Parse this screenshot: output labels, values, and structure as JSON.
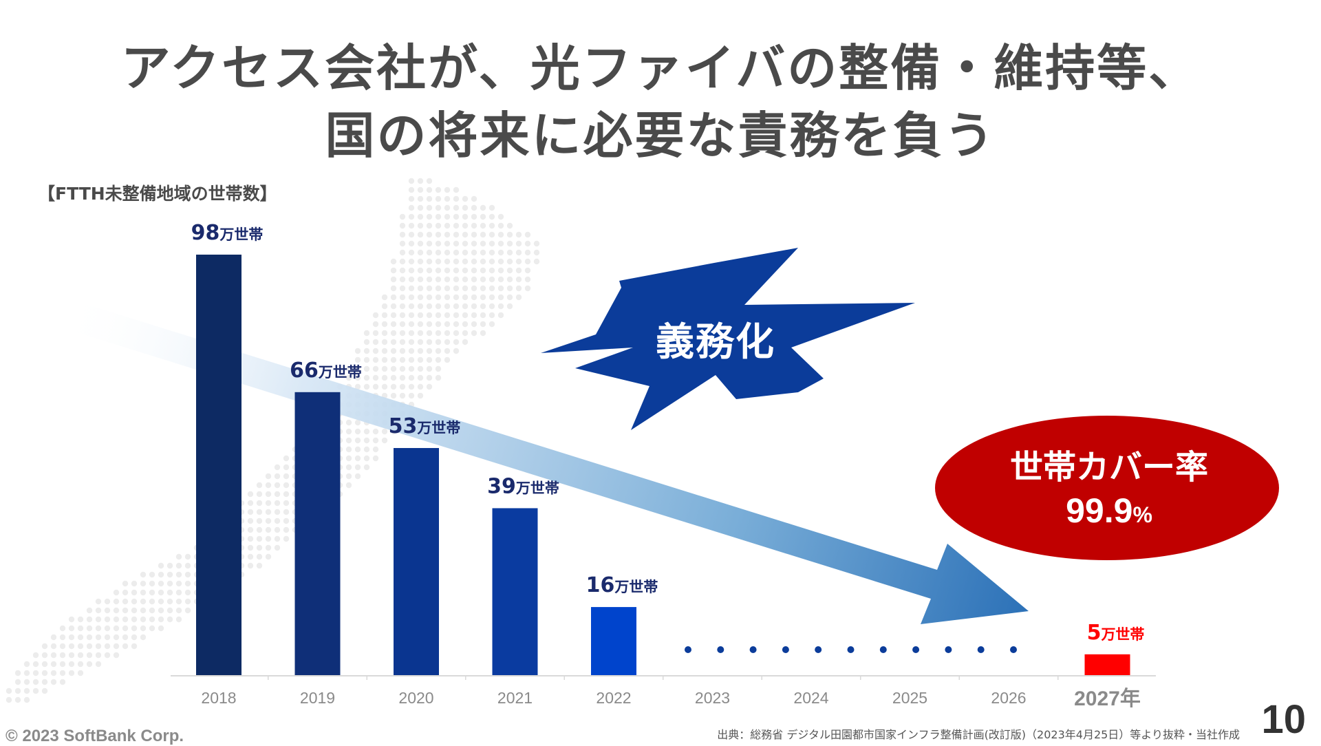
{
  "slide": {
    "title_line1": "アクセス会社が、光ファイバの整備・維持等、",
    "title_line2": "国の将来に必要な責務を負う",
    "caption": "【FTTH未整備地域の世帯数】",
    "badge": "義務化",
    "coverage_label": "世帯カバー率",
    "coverage_value": "99.9",
    "coverage_unit": "%",
    "copyright": "© 2023 SoftBank Corp.",
    "source": "出典：総務省 デジタル田園都市国家インフラ整備計画(改訂版)（2023年4月25日）等より抜粋・当社作成",
    "page_number": "10"
  },
  "colors": {
    "title": "#4a4a4a",
    "bar_dark": "#0d2a63",
    "bar_light": "#0044cc",
    "bar_highlight": "#ff0000",
    "badge": "#0b3c9a",
    "coverage_ellipse": "#c00000",
    "label_navy": "#1a2a6c",
    "label_red": "#ff0000"
  },
  "chart_data": {
    "type": "bar",
    "title": "【FTTH未整備地域の世帯数】",
    "categories": [
      "2018",
      "2019",
      "2020",
      "2021",
      "2022",
      "2023",
      "2024",
      "2025",
      "2026",
      "2027年"
    ],
    "values": [
      98,
      66,
      53,
      39,
      16,
      null,
      null,
      null,
      null,
      5
    ],
    "unit": "万世帯",
    "data_labels": [
      {
        "num": "98",
        "unit": "万世帯"
      },
      {
        "num": "66",
        "unit": "万世帯"
      },
      {
        "num": "53",
        "unit": "万世帯"
      },
      {
        "num": "39",
        "unit": "万世帯"
      },
      {
        "num": "16",
        "unit": "万世帯"
      },
      null,
      null,
      null,
      null,
      {
        "num": "5",
        "unit": "万世帯"
      }
    ],
    "highlight": "2027年",
    "ylim": [
      0,
      100
    ],
    "grid": false
  }
}
